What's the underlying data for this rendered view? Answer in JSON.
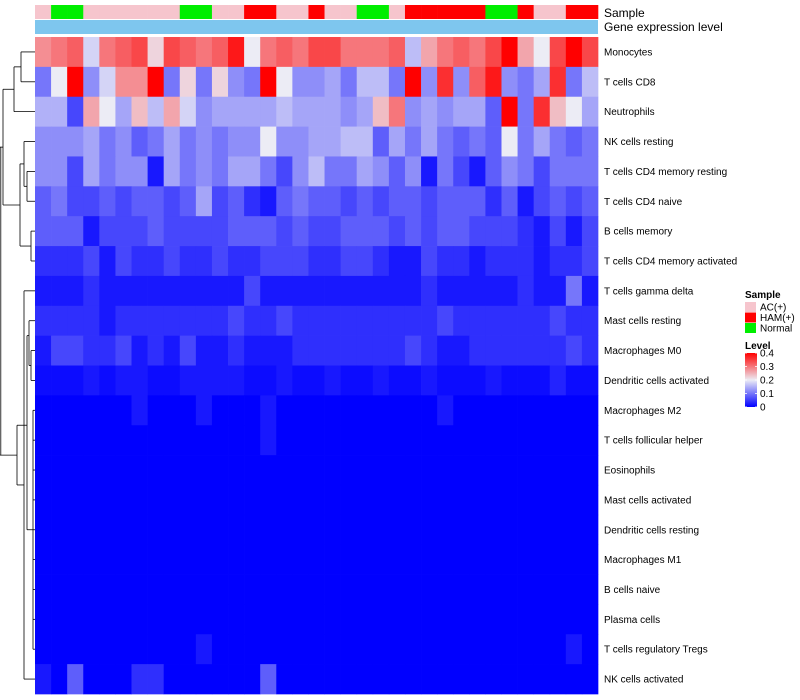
{
  "chart_data": {
    "type": "heatmap",
    "title": "",
    "annotation_labels": {
      "sample": "Sample",
      "expression": "Gene expression level"
    },
    "row_labels": [
      "Monocytes",
      "T cells CD8",
      "Neutrophils",
      "NK cells resting",
      "T cells CD4 memory resting",
      "T cells CD4 naive",
      "B cells memory",
      "T cells CD4 memory activated",
      "T cells gamma delta",
      "Mast cells resting",
      "Macrophages M0",
      "Dendritic cells activated",
      "Macrophages M2",
      "T cells follicular helper",
      "Eosinophils",
      "Mast cells activated",
      "Dendritic cells resting",
      "Macrophages M1",
      "B cells naive",
      "Plasma cells",
      "T cells regulatory  Tregs",
      "NK cells activated"
    ],
    "sample_groups": [
      "AC",
      "N",
      "N",
      "AC",
      "AC",
      "AC",
      "AC",
      "AC",
      "AC",
      "N",
      "N",
      "AC",
      "AC",
      "H",
      "H",
      "AC",
      "AC",
      "H",
      "AC",
      "AC",
      "N",
      "N",
      "AC",
      "H",
      "H",
      "H",
      "H",
      "H",
      "N",
      "N",
      "H",
      "AC",
      "AC",
      "H",
      "H"
    ],
    "values": [
      [
        0.28,
        0.3,
        0.32,
        0.18,
        0.3,
        0.32,
        0.34,
        0.22,
        0.34,
        0.32,
        0.3,
        0.32,
        0.38,
        0.2,
        0.3,
        0.32,
        0.3,
        0.34,
        0.34,
        0.3,
        0.3,
        0.3,
        0.32,
        0.16,
        0.26,
        0.3,
        0.32,
        0.3,
        0.34,
        0.4,
        0.26,
        0.2,
        0.34,
        0.4,
        0.34
      ],
      [
        0.1,
        0.2,
        0.4,
        0.12,
        0.18,
        0.28,
        0.28,
        0.4,
        0.1,
        0.22,
        0.1,
        0.22,
        0.12,
        0.1,
        0.4,
        0.2,
        0.12,
        0.12,
        0.14,
        0.1,
        0.16,
        0.16,
        0.1,
        0.4,
        0.12,
        0.36,
        0.12,
        0.32,
        0.38,
        0.12,
        0.1,
        0.14,
        0.36,
        0.1,
        0.16
      ],
      [
        0.15,
        0.15,
        0.06,
        0.26,
        0.2,
        0.14,
        0.24,
        0.16,
        0.26,
        0.18,
        0.12,
        0.14,
        0.14,
        0.14,
        0.14,
        0.16,
        0.14,
        0.14,
        0.14,
        0.12,
        0.14,
        0.24,
        0.3,
        0.12,
        0.14,
        0.12,
        0.14,
        0.14,
        0.08,
        0.4,
        0.1,
        0.36,
        0.24,
        0.2,
        0.14
      ],
      [
        0.12,
        0.12,
        0.12,
        0.14,
        0.1,
        0.12,
        0.08,
        0.1,
        0.14,
        0.1,
        0.12,
        0.1,
        0.12,
        0.12,
        0.2,
        0.12,
        0.12,
        0.14,
        0.14,
        0.16,
        0.16,
        0.08,
        0.14,
        0.1,
        0.14,
        0.1,
        0.08,
        0.1,
        0.08,
        0.2,
        0.1,
        0.14,
        0.1,
        0.08,
        0.1
      ],
      [
        0.12,
        0.12,
        0.06,
        0.14,
        0.1,
        0.12,
        0.12,
        0.02,
        0.14,
        0.1,
        0.12,
        0.1,
        0.14,
        0.14,
        0.1,
        0.06,
        0.12,
        0.16,
        0.1,
        0.1,
        0.14,
        0.12,
        0.08,
        0.12,
        0.02,
        0.1,
        0.06,
        0.02,
        0.08,
        0.12,
        0.1,
        0.06,
        0.1,
        0.1,
        0.1
      ],
      [
        0.08,
        0.1,
        0.06,
        0.06,
        0.08,
        0.06,
        0.08,
        0.08,
        0.06,
        0.08,
        0.14,
        0.06,
        0.08,
        0.04,
        0.02,
        0.08,
        0.1,
        0.08,
        0.08,
        0.06,
        0.08,
        0.06,
        0.08,
        0.08,
        0.06,
        0.08,
        0.08,
        0.08,
        0.04,
        0.08,
        0.02,
        0.06,
        0.08,
        0.06,
        0.08
      ],
      [
        0.08,
        0.08,
        0.08,
        0.02,
        0.06,
        0.06,
        0.06,
        0.08,
        0.06,
        0.06,
        0.06,
        0.06,
        0.08,
        0.08,
        0.08,
        0.06,
        0.08,
        0.06,
        0.06,
        0.08,
        0.08,
        0.08,
        0.06,
        0.08,
        0.06,
        0.08,
        0.08,
        0.06,
        0.06,
        0.06,
        0.04,
        0.02,
        0.06,
        0.02,
        0.06
      ],
      [
        0.04,
        0.04,
        0.04,
        0.06,
        0.02,
        0.06,
        0.04,
        0.04,
        0.06,
        0.04,
        0.04,
        0.06,
        0.04,
        0.04,
        0.06,
        0.06,
        0.06,
        0.04,
        0.04,
        0.06,
        0.06,
        0.04,
        0.02,
        0.02,
        0.06,
        0.04,
        0.04,
        0.02,
        0.04,
        0.04,
        0.04,
        0.02,
        0.04,
        0.04,
        0.06
      ],
      [
        0.02,
        0.02,
        0.02,
        0.04,
        0.02,
        0.02,
        0.02,
        0.02,
        0.02,
        0.02,
        0.02,
        0.02,
        0.02,
        0.06,
        0.02,
        0.02,
        0.02,
        0.02,
        0.02,
        0.02,
        0.02,
        0.02,
        0.02,
        0.02,
        0.04,
        0.02,
        0.02,
        0.02,
        0.02,
        0.02,
        0.04,
        0.02,
        0.02,
        0.1,
        0.02
      ],
      [
        0.04,
        0.04,
        0.04,
        0.04,
        0.02,
        0.04,
        0.04,
        0.04,
        0.04,
        0.04,
        0.04,
        0.04,
        0.06,
        0.04,
        0.04,
        0.06,
        0.04,
        0.04,
        0.04,
        0.04,
        0.04,
        0.04,
        0.04,
        0.04,
        0.04,
        0.06,
        0.04,
        0.04,
        0.04,
        0.04,
        0.04,
        0.04,
        0.06,
        0.04,
        0.04
      ],
      [
        0.02,
        0.06,
        0.06,
        0.04,
        0.04,
        0.06,
        0.02,
        0.04,
        0.02,
        0.06,
        0.02,
        0.02,
        0.04,
        0.02,
        0.02,
        0.02,
        0.04,
        0.04,
        0.04,
        0.04,
        0.04,
        0.04,
        0.04,
        0.06,
        0.04,
        0.02,
        0.02,
        0.04,
        0.04,
        0.04,
        0.04,
        0.04,
        0.04,
        0.06,
        0.04
      ],
      [
        0.01,
        0.01,
        0.01,
        0.02,
        0.01,
        0.02,
        0.02,
        0.01,
        0.01,
        0.02,
        0.02,
        0.02,
        0.02,
        0.01,
        0.01,
        0.02,
        0.01,
        0.01,
        0.02,
        0.01,
        0.01,
        0.02,
        0.01,
        0.01,
        0.02,
        0.01,
        0.01,
        0.01,
        0.02,
        0.01,
        0.01,
        0.01,
        0.03,
        0.01,
        0.01
      ],
      [
        0.0,
        0.0,
        0.0,
        0.0,
        0.0,
        0.0,
        0.02,
        0.0,
        0.0,
        0.0,
        0.02,
        0.0,
        0.0,
        0.0,
        0.02,
        0.0,
        0.0,
        0.0,
        0.0,
        0.0,
        0.0,
        0.0,
        0.0,
        0.0,
        0.0,
        0.02,
        0.0,
        0.0,
        0.0,
        0.0,
        0.0,
        0.0,
        0.0,
        0.0,
        0.0
      ],
      [
        0.0,
        0.0,
        0.0,
        0.0,
        0.0,
        0.0,
        0.0,
        0.0,
        0.0,
        0.0,
        0.0,
        0.0,
        0.0,
        0.0,
        0.02,
        0.0,
        0.0,
        0.0,
        0.0,
        0.0,
        0.0,
        0.0,
        0.0,
        0.0,
        0.0,
        0.0,
        0.0,
        0.0,
        0.0,
        0.0,
        0.0,
        0.0,
        0.0,
        0.0,
        0.0
      ],
      [
        0.0,
        0.0,
        0.0,
        0.0,
        0.0,
        0.0,
        0.0,
        0.0,
        0.0,
        0.0,
        0.0,
        0.0,
        0.0,
        0.0,
        0.0,
        0.0,
        0.0,
        0.0,
        0.0,
        0.0,
        0.0,
        0.0,
        0.0,
        0.0,
        0.0,
        0.0,
        0.0,
        0.0,
        0.0,
        0.0,
        0.0,
        0.0,
        0.0,
        0.0,
        0.0
      ],
      [
        0.0,
        0.0,
        0.0,
        0.0,
        0.0,
        0.0,
        0.0,
        0.0,
        0.0,
        0.0,
        0.0,
        0.0,
        0.0,
        0.0,
        0.0,
        0.0,
        0.0,
        0.0,
        0.0,
        0.0,
        0.0,
        0.0,
        0.0,
        0.0,
        0.0,
        0.0,
        0.0,
        0.0,
        0.0,
        0.0,
        0.0,
        0.0,
        0.0,
        0.0,
        0.0
      ],
      [
        0.0,
        0.0,
        0.0,
        0.0,
        0.0,
        0.0,
        0.0,
        0.0,
        0.0,
        0.0,
        0.0,
        0.0,
        0.0,
        0.0,
        0.0,
        0.0,
        0.0,
        0.0,
        0.0,
        0.0,
        0.0,
        0.0,
        0.0,
        0.0,
        0.0,
        0.0,
        0.0,
        0.0,
        0.0,
        0.0,
        0.0,
        0.0,
        0.0,
        0.0,
        0.0
      ],
      [
        0.0,
        0.0,
        0.0,
        0.0,
        0.0,
        0.0,
        0.0,
        0.0,
        0.0,
        0.0,
        0.0,
        0.0,
        0.0,
        0.0,
        0.0,
        0.0,
        0.0,
        0.0,
        0.0,
        0.0,
        0.0,
        0.0,
        0.0,
        0.0,
        0.0,
        0.0,
        0.0,
        0.0,
        0.0,
        0.0,
        0.0,
        0.0,
        0.0,
        0.0,
        0.0
      ],
      [
        0.0,
        0.0,
        0.0,
        0.0,
        0.0,
        0.0,
        0.0,
        0.0,
        0.0,
        0.0,
        0.0,
        0.0,
        0.0,
        0.0,
        0.0,
        0.0,
        0.0,
        0.0,
        0.0,
        0.0,
        0.0,
        0.0,
        0.0,
        0.0,
        0.0,
        0.0,
        0.0,
        0.0,
        0.0,
        0.0,
        0.0,
        0.0,
        0.0,
        0.0,
        0.0
      ],
      [
        0.0,
        0.0,
        0.0,
        0.0,
        0.0,
        0.0,
        0.0,
        0.0,
        0.0,
        0.0,
        0.0,
        0.0,
        0.0,
        0.0,
        0.0,
        0.0,
        0.0,
        0.0,
        0.0,
        0.0,
        0.0,
        0.0,
        0.0,
        0.0,
        0.0,
        0.0,
        0.0,
        0.0,
        0.0,
        0.0,
        0.0,
        0.0,
        0.0,
        0.0,
        0.0
      ],
      [
        0.0,
        0.0,
        0.0,
        0.0,
        0.0,
        0.0,
        0.0,
        0.0,
        0.0,
        0.0,
        0.02,
        0.0,
        0.0,
        0.0,
        0.0,
        0.0,
        0.0,
        0.0,
        0.0,
        0.0,
        0.0,
        0.0,
        0.0,
        0.0,
        0.0,
        0.0,
        0.0,
        0.0,
        0.0,
        0.0,
        0.0,
        0.0,
        0.0,
        0.02,
        0.0
      ],
      [
        0.02,
        0.0,
        0.08,
        0.0,
        0.0,
        0.0,
        0.04,
        0.04,
        0.0,
        0.0,
        0.0,
        0.0,
        0.0,
        0.0,
        0.08,
        0.0,
        0.0,
        0.0,
        0.0,
        0.0,
        0.0,
        0.0,
        0.0,
        0.0,
        0.0,
        0.0,
        0.0,
        0.0,
        0.0,
        0.0,
        0.0,
        0.0,
        0.0,
        0.0,
        0.0
      ]
    ],
    "color_scale": {
      "domain": [
        0,
        0.2,
        0.4
      ],
      "colors": [
        "#0000ff",
        "#ececf5",
        "#ff0000"
      ]
    },
    "legend": {
      "sample_title": "Sample",
      "sample_entries": [
        {
          "key": "AC",
          "label": "AC(+)",
          "color": "#f6c5cd"
        },
        {
          "key": "H",
          "label": "HAM(+)",
          "color": "#ff0000"
        },
        {
          "key": "N",
          "label": "Normal",
          "color": "#00ee00"
        }
      ],
      "level_title": "Level",
      "level_ticks": [
        0.4,
        0.3,
        0.2,
        0.1,
        0
      ],
      "level_min": 0,
      "level_max": 0.4,
      "placement": "right"
    },
    "expression_bar_color": "#7ec6ee"
  }
}
